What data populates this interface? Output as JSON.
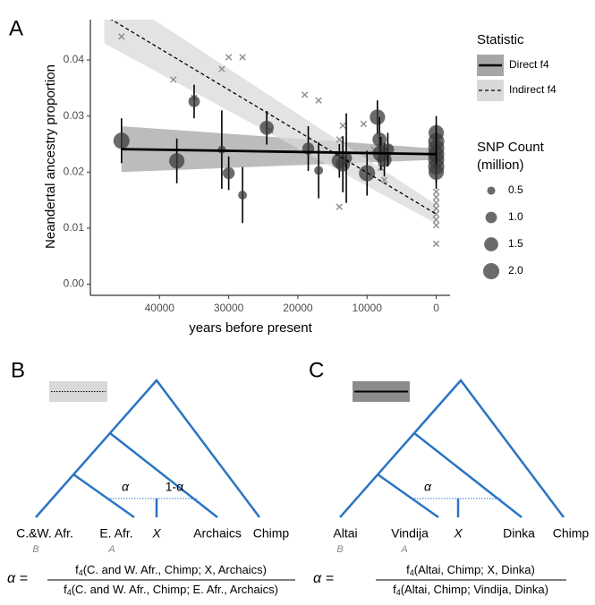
{
  "chart_data": {
    "type": "scatter",
    "panel_label": "A",
    "x_label": "years before present",
    "y_label": "Neandertal ancestry proportion",
    "xlim": [
      50000,
      -2000
    ],
    "xticks": [
      40000,
      30000,
      20000,
      10000,
      0
    ],
    "ylim": [
      -0.002,
      0.0472
    ],
    "yticks": [
      {
        "value": 0,
        "label": "0.00"
      },
      {
        "value": 0.01,
        "label": "0.01"
      },
      {
        "value": 0.02,
        "label": "0.02"
      },
      {
        "value": 0.03,
        "label": "0.03"
      },
      {
        "value": 0.04,
        "label": "0.04"
      }
    ],
    "points": {
      "color": "#3a3a3a",
      "x": [
        45500,
        37500,
        35000,
        31000,
        30000,
        28000,
        24500,
        18500,
        17000,
        14000,
        13500,
        13000,
        10000,
        8500,
        8200,
        8000,
        7500,
        7000,
        0,
        0,
        0,
        0,
        0,
        0,
        0
      ],
      "values": [
        0.0256,
        0.022,
        0.0326,
        0.024,
        0.0198,
        0.0159,
        0.0279,
        0.0242,
        0.0203,
        0.022,
        0.0214,
        0.0225,
        0.0198,
        0.0298,
        0.0258,
        0.0233,
        0.0222,
        0.024,
        0.027,
        0.0255,
        0.0243,
        0.0232,
        0.0222,
        0.021,
        0.02
      ],
      "sizes": [
        2.0,
        1.8,
        1.0,
        0.5,
        1.1,
        0.6,
        1.5,
        1.1,
        0.6,
        1.8,
        1.6,
        1.0,
        2.0,
        1.8,
        1.5,
        2.0,
        1.6,
        1.2,
        1.8,
        2.0,
        2.0,
        2.0,
        2.0,
        2.0,
        1.8
      ],
      "errors": [
        0.004,
        0.004,
        0.003,
        0.007,
        0.003,
        0.005,
        0.003,
        0.004,
        0.005,
        0.003,
        0.005,
        0.008,
        0.004,
        0.003,
        0.004,
        0.003,
        0.003,
        0.003,
        0.003,
        0.003,
        0.003,
        0.003,
        0.003,
        0.003,
        0.003
      ]
    },
    "crosses": {
      "color": "#8c8c8c",
      "x": [
        45500,
        38000,
        35000,
        31000,
        30000,
        28000,
        24000,
        19000,
        17000,
        14000,
        14000,
        13500,
        10500,
        9000,
        8000,
        7500,
        0,
        0,
        0,
        0,
        0,
        0,
        0,
        0
      ],
      "values": [
        0.0442,
        0.0365,
        0.0333,
        0.0384,
        0.0405,
        0.0405,
        0.0275,
        0.0338,
        0.0328,
        0.0138,
        0.0258,
        0.0283,
        0.0286,
        0.024,
        0.0208,
        0.0186,
        0.0165,
        0.0155,
        0.0145,
        0.0135,
        0.0125,
        0.0115,
        0.0105,
        0.0072
      ]
    },
    "legend_title": "Statistic",
    "series": [
      {
        "name": "Direct f4",
        "color": "#000000",
        "band_color": "#a6a6a6",
        "dash": false,
        "x": [
          45500,
          0
        ],
        "values": [
          0.0241,
          0.0232
        ],
        "lower": [
          0.02,
          0.0222
        ],
        "upper": [
          0.0282,
          0.0242
        ]
      },
      {
        "name": "Indirect f4",
        "color": "#000000",
        "band_color": "#d9d9d9",
        "dash": true,
        "x": [
          48000,
          0
        ],
        "values": [
          0.048,
          0.0125
        ],
        "lower": [
          0.043,
          0.0108
        ],
        "upper": [
          0.053,
          0.0142
        ]
      }
    ],
    "size_legend": {
      "title": [
        "SNP Count",
        "(million)"
      ],
      "values": [
        0.5,
        {
          "value": 1.0,
          "label": "1.0"
        },
        1.5,
        {
          "value": 2.0,
          "label": "2.0"
        }
      ]
    }
  },
  "panels": [
    {
      "label": "B",
      "leaves": [
        "C.&W. Afr.",
        "E. Afr.",
        "X",
        "Archaics",
        "Chimp"
      ],
      "sublabels": [
        "B",
        "A"
      ],
      "alpha": "α",
      "one_minus_alpha": "1-α",
      "lhs": "α =",
      "numerator": [
        "f",
        "4",
        "(C. and W. Afr., Chimp; X, Archaics)"
      ],
      "denominator": [
        "f",
        "4",
        "(C. and W. Afr., Chimp; E. Afr., Archaics)"
      ]
    },
    {
      "label": "C",
      "leaves": [
        "Altai",
        "Vindija",
        "X",
        "Dinka",
        "Chimp"
      ],
      "sublabels": [
        "B",
        "A"
      ],
      "alpha": "α",
      "lhs": "α =",
      "numerator": [
        "f",
        "4",
        "(Altai, Chimp; X, Dinka)"
      ],
      "denominator": [
        "f",
        "4",
        "(Altai, Chimp; Vindija, Dinka)"
      ]
    }
  ]
}
